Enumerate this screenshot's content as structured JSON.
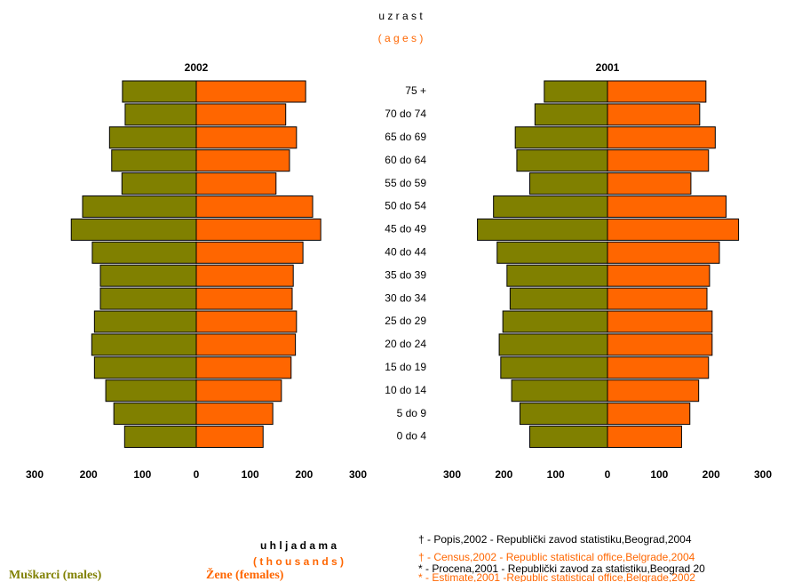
{
  "header": {
    "title": "u z r a s t",
    "subtitle": "( a g e s )"
  },
  "axis_title": {
    "text": "u h l j a d a m a",
    "subtext": "( t h o u s a n d s )"
  },
  "notes": [
    "† - Popis,2002 - Republički zavod statistiku,Beograd,2004",
    "† - Census,2002 - Republic statistical office,Belgrade,2004",
    "* - Procena,2001 - Republički zavod za statistiku,Beograd 20",
    "* - Estimate,2001 -Republic statistical office,Belgrade,2002"
  ],
  "chart_data": [
    {
      "type": "pyramid",
      "title": "2002",
      "categories": [
        "75 +",
        "70 do 74",
        "65 do 69",
        "60 do 64",
        "55 do 59",
        "50 do 54",
        "45 do 49",
        "40 do 44",
        "35 do 39",
        "30 do 34",
        "25 do 29",
        "20 do 24",
        "15 do 19",
        "10 do 14",
        "5 do 9",
        "0 do 4"
      ],
      "series": [
        {
          "name": "Muškarci (males)",
          "color": "#808000",
          "values": [
            137,
            132,
            161,
            157,
            138,
            211,
            232,
            193,
            178,
            178,
            189,
            194,
            189,
            168,
            153,
            133
          ]
        },
        {
          "name": "Žene (females)",
          "color": "#ff6600",
          "values": [
            203,
            166,
            186,
            173,
            148,
            216,
            231,
            198,
            180,
            178,
            186,
            184,
            176,
            158,
            142,
            124
          ]
        }
      ],
      "xlim": [
        -300,
        300
      ],
      "xticks": [
        {
          "value": -300,
          "label": "300"
        },
        {
          "value": -200,
          "label": "200"
        },
        {
          "value": -100,
          "label": "100"
        },
        0,
        100,
        200,
        300
      ]
    },
    {
      "type": "pyramid",
      "title": "2001",
      "series": [
        {
          "color": "#808000",
          "values": [
            122,
            140,
            178,
            175,
            150,
            220,
            251,
            213,
            194,
            188,
            202,
            209,
            206,
            185,
            169,
            150
          ]
        },
        {
          "color": "#ff6600",
          "values": [
            190,
            178,
            208,
            195,
            161,
            229,
            253,
            216,
            197,
            192,
            202,
            202,
            195,
            176,
            159,
            143
          ]
        }
      ],
      "xlim": [
        -300,
        300
      ],
      "xticks": [
        {
          "value": -300,
          "label": "300"
        },
        {
          "value": -200,
          "label": "200"
        },
        {
          "value": -100,
          "label": "100"
        },
        0,
        100,
        200,
        300
      ]
    }
  ]
}
